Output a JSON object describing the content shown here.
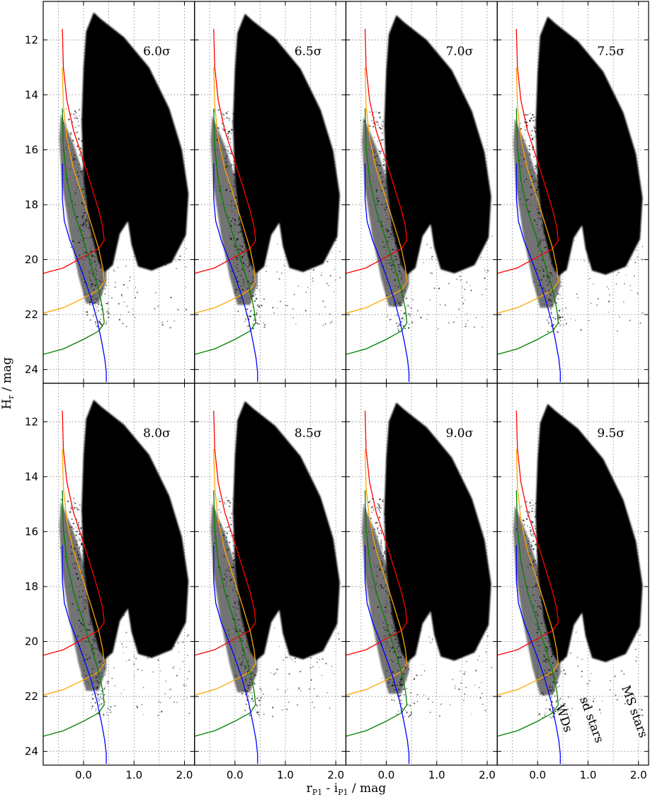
{
  "chart_data": {
    "type": "scatter",
    "layout": {
      "rows": 2,
      "cols": 4
    },
    "xlabel": {
      "main": "r",
      "sub1": "P1",
      "mid": " - i",
      "sub2": "P1",
      "unit": " / mag"
    },
    "ylabel": {
      "main": "H",
      "sub": "r",
      "unit": " / mag"
    },
    "xlim": [
      -0.8,
      2.2
    ],
    "ylim": [
      24.5,
      10.6
    ],
    "xticks": [
      {
        "v": 0.0,
        "label": "0.0"
      },
      {
        "v": 1.0,
        "label": "1.0"
      },
      {
        "v": 2.0,
        "label": "2.0"
      }
    ],
    "yticks": [
      {
        "v": 12,
        "label": "12"
      },
      {
        "v": 14,
        "label": "14"
      },
      {
        "v": 16,
        "label": "16"
      },
      {
        "v": 18,
        "label": "18"
      },
      {
        "v": 20,
        "label": "20"
      },
      {
        "v": 22,
        "label": "22"
      },
      {
        "v": 24,
        "label": "24"
      }
    ],
    "xgrid_minor": [
      -0.5,
      0.5,
      1.5
    ],
    "grid": true,
    "panels": [
      {
        "label": "6.0σ",
        "shift": 0.0
      },
      {
        "label": "6.5σ",
        "shift": 0.05
      },
      {
        "label": "7.0σ",
        "shift": 0.1
      },
      {
        "label": "7.5σ",
        "shift": 0.15
      },
      {
        "label": "8.0σ",
        "shift": 0.2
      },
      {
        "label": "8.5σ",
        "shift": 0.25
      },
      {
        "label": "9.0σ",
        "shift": 0.3
      },
      {
        "label": "9.5σ",
        "shift": 0.35
      }
    ],
    "reference_curves": [
      {
        "color": "#ff0000",
        "points": [
          [
            -0.42,
            11.6
          ],
          [
            -0.4,
            13.0
          ],
          [
            -0.33,
            14.2
          ],
          [
            -0.2,
            15.3
          ],
          [
            -0.02,
            16.3
          ],
          [
            0.15,
            17.3
          ],
          [
            0.3,
            18.2
          ],
          [
            0.38,
            18.8
          ],
          [
            0.41,
            19.3
          ],
          [
            0.3,
            19.6
          ],
          [
            0.0,
            19.9
          ],
          [
            -0.4,
            20.3
          ],
          [
            -0.8,
            20.5
          ]
        ]
      },
      {
        "color": "#ffa500",
        "points": [
          [
            -0.42,
            13.0
          ],
          [
            -0.4,
            14.4
          ],
          [
            -0.33,
            15.6
          ],
          [
            -0.2,
            16.7
          ],
          [
            -0.02,
            17.7
          ],
          [
            0.15,
            18.7
          ],
          [
            0.3,
            19.6
          ],
          [
            0.38,
            20.3
          ],
          [
            0.41,
            20.8
          ],
          [
            0.3,
            21.1
          ],
          [
            0.0,
            21.4
          ],
          [
            -0.4,
            21.75
          ],
          [
            -0.8,
            21.95
          ]
        ]
      },
      {
        "color": "#008000",
        "points": [
          [
            -0.42,
            14.5
          ],
          [
            -0.4,
            15.9
          ],
          [
            -0.33,
            17.1
          ],
          [
            -0.2,
            18.2
          ],
          [
            -0.02,
            19.2
          ],
          [
            0.15,
            20.2
          ],
          [
            0.3,
            21.1
          ],
          [
            0.38,
            21.8
          ],
          [
            0.41,
            22.3
          ],
          [
            0.3,
            22.6
          ],
          [
            0.0,
            22.9
          ],
          [
            -0.4,
            23.25
          ],
          [
            -0.8,
            23.45
          ]
        ]
      },
      {
        "color": "#0000ff",
        "points": [
          [
            -0.42,
            16.5
          ],
          [
            -0.42,
            17.8
          ],
          [
            -0.38,
            18.6
          ],
          [
            -0.27,
            19.3
          ],
          [
            -0.12,
            20.0
          ],
          [
            0.02,
            20.7
          ],
          [
            0.15,
            21.4
          ],
          [
            0.27,
            22.2
          ],
          [
            0.36,
            23.0
          ],
          [
            0.42,
            23.6
          ],
          [
            0.45,
            24.1
          ],
          [
            0.45,
            24.45
          ]
        ]
      }
    ],
    "annotations": [
      {
        "text": "WDs",
        "x": 0.45,
        "y": 22.85,
        "rotate": 70
      },
      {
        "text": "sd stars",
        "x": 1.0,
        "y": 22.9,
        "rotate": 70
      },
      {
        "text": "MS stars",
        "x": 1.85,
        "y": 22.6,
        "rotate": 70
      }
    ],
    "annotation_panel": 7
  }
}
